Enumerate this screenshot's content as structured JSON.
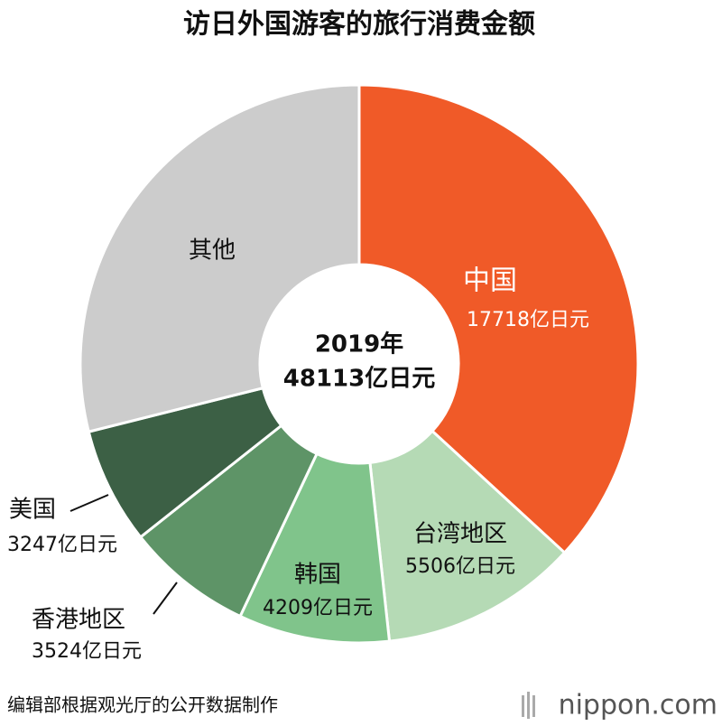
{
  "chart_data": {
    "type": "donut",
    "title": "访日外国游客的旅行消费金额",
    "center_text": [
      "2019年",
      "48113亿日元"
    ],
    "categories": [
      "中国",
      "台湾地区",
      "韩国",
      "香港地区",
      "美国",
      "其他"
    ],
    "values": [
      17718,
      5506,
      4209,
      3524,
      3247,
      13909
    ],
    "value_labels": [
      "17718亿日元",
      "5506亿日元",
      "4209亿日元",
      "3524亿日元",
      "3247亿日元",
      null
    ],
    "colors": [
      "#f05a28",
      "#b5dab5",
      "#80c48b",
      "#5e9467",
      "#3c6045",
      "#cccccc"
    ],
    "source": "编辑部根据观光厅的公开数据制作",
    "logo": "nippon.com"
  }
}
